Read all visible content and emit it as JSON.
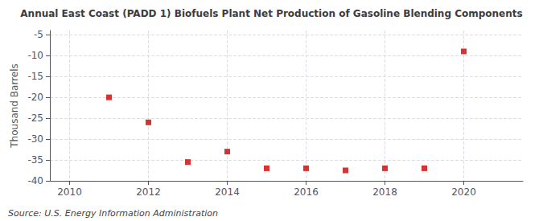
{
  "chart_data": {
    "type": "scatter",
    "title": "Annual East Coast (PADD 1) Biofuels Plant Net Production of Gasoline Blending Components",
    "ylabel": "Thousand Barrels",
    "annotations": [
      "Source: U.S. Energy Information Administration"
    ],
    "x": [
      2011,
      2012,
      2013,
      2014,
      2015,
      2016,
      2017,
      2018,
      2019,
      2020
    ],
    "values": [
      -20,
      -26,
      -35.5,
      -33,
      -37,
      -37,
      -37.5,
      -37,
      -37,
      -9
    ],
    "color": "#cc0000",
    "marker": "square",
    "xlim": [
      2009.5,
      2021.5
    ],
    "xticks": [
      2010,
      2012,
      2014,
      2016,
      2018,
      2020
    ],
    "ylim": [
      -40,
      -4
    ],
    "yticks": [
      -5,
      -10,
      -15,
      -20,
      -25,
      -30,
      -35,
      -40
    ],
    "grid": true
  }
}
